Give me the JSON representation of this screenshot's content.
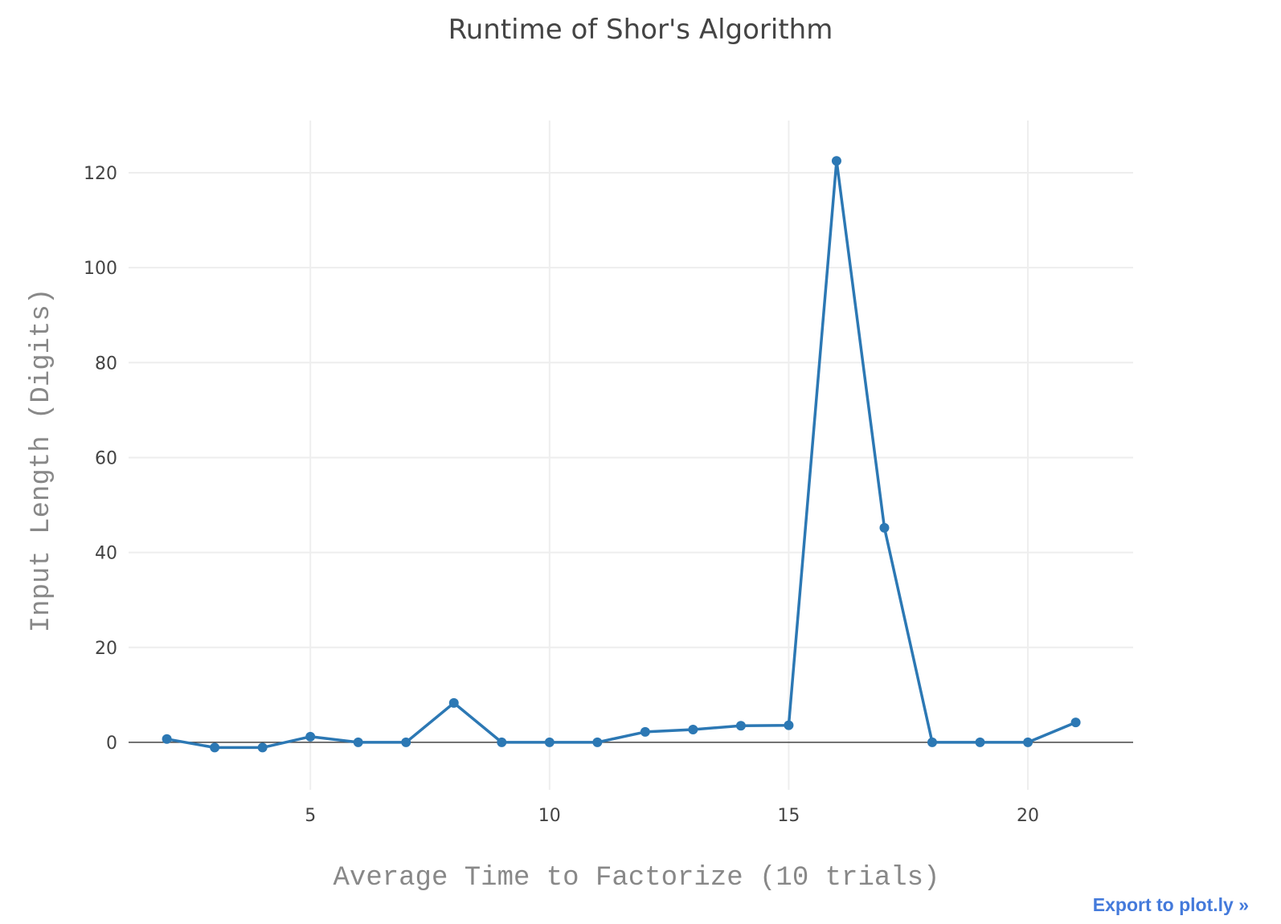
{
  "export_link": "Export to plot.ly »",
  "chart_data": {
    "type": "line",
    "title": "Runtime of Shor's Algorithm",
    "xlabel": "Average Time to Factorize (10 trials)",
    "ylabel": "Input Length (Digits)",
    "xlim": [
      1.2,
      22.2
    ],
    "ylim": [
      -10,
      131
    ],
    "xticks": [
      5,
      10,
      15,
      20
    ],
    "yticks": [
      0,
      20,
      40,
      60,
      80,
      100,
      120
    ],
    "grid": true,
    "legend": "none",
    "colors": {
      "line": "#2c78b4",
      "grid": "#eeeeee",
      "zeroline": "#444444"
    },
    "series": [
      {
        "x": [
          2,
          3,
          4,
          5,
          6,
          7,
          8,
          9,
          10,
          11,
          12,
          13,
          14,
          15,
          16,
          17,
          18,
          19,
          20,
          21
        ],
        "values": [
          0.7,
          -1.1,
          -1.1,
          1.2,
          0,
          0,
          8.3,
          0,
          0,
          0,
          2.2,
          2.7,
          3.5,
          3.6,
          122.5,
          45.2,
          0,
          0,
          0,
          4.2
        ]
      }
    ]
  }
}
